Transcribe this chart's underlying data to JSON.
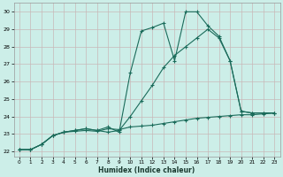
{
  "xlabel": "Humidex (Indice chaleur)",
  "bg_color": "#cceee8",
  "line_color": "#1a6b5a",
  "grid_color": "#c8b8b8",
  "xlim": [
    -0.5,
    23.5
  ],
  "ylim": [
    21.7,
    30.5
  ],
  "xticks": [
    0,
    1,
    2,
    3,
    4,
    5,
    6,
    7,
    8,
    9,
    10,
    11,
    12,
    13,
    14,
    15,
    16,
    17,
    18,
    19,
    20,
    21,
    22,
    23
  ],
  "yticks": [
    22,
    23,
    24,
    25,
    26,
    27,
    28,
    29,
    30
  ],
  "line1_x": [
    0,
    1,
    2,
    3,
    4,
    5,
    6,
    7,
    8,
    9,
    10,
    11,
    12,
    13,
    14,
    15,
    16,
    17,
    18,
    19,
    20,
    21,
    22,
    23
  ],
  "line1_y": [
    22.1,
    22.1,
    22.4,
    22.9,
    23.1,
    23.2,
    23.3,
    23.2,
    23.4,
    23.1,
    26.5,
    28.9,
    29.1,
    29.35,
    27.2,
    30.0,
    30.0,
    29.2,
    28.6,
    27.2,
    24.3,
    24.2,
    24.2,
    24.2
  ],
  "line2_x": [
    0,
    1,
    2,
    3,
    4,
    5,
    6,
    7,
    8,
    9,
    10,
    11,
    12,
    13,
    14,
    15,
    16,
    17,
    18,
    19,
    20,
    21,
    22,
    23
  ],
  "line2_y": [
    22.1,
    22.1,
    22.4,
    22.9,
    23.1,
    23.2,
    23.3,
    23.2,
    23.1,
    23.2,
    24.0,
    24.9,
    25.8,
    26.8,
    27.5,
    28.0,
    28.5,
    29.0,
    28.5,
    27.2,
    24.3,
    24.2,
    24.2,
    24.2
  ],
  "line3_x": [
    0,
    1,
    2,
    3,
    4,
    5,
    6,
    7,
    8,
    9,
    10,
    11,
    12,
    13,
    14,
    15,
    16,
    17,
    18,
    19,
    20,
    21,
    22,
    23
  ],
  "line3_y": [
    22.1,
    22.1,
    22.4,
    22.9,
    23.1,
    23.15,
    23.2,
    23.15,
    23.3,
    23.25,
    23.4,
    23.45,
    23.5,
    23.6,
    23.7,
    23.8,
    23.9,
    23.95,
    24.0,
    24.05,
    24.1,
    24.1,
    24.15,
    24.2
  ]
}
